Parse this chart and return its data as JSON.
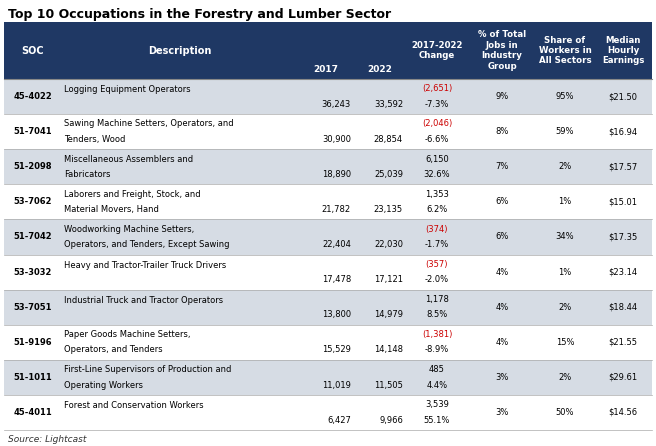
{
  "title": "Top 10 Occupations in the Forestry and Lumber Sector",
  "source": "Source: Lightcast",
  "header_bg": "#1F3864",
  "alt_row_bg": "#D6DCE4",
  "white_bg": "#FFFFFF",
  "neg_color": "#CC0000",
  "rows": [
    {
      "soc": "45-4022",
      "desc_line1": "Logging Equipment Operators",
      "desc_line2": "",
      "val2017": "36,243",
      "val2022": "33,592",
      "change_abs": "(2,651)",
      "change_pct": "-7.3%",
      "pct_jobs": "9%",
      "share": "95%",
      "median": "$21.50",
      "neg": true
    },
    {
      "soc": "51-7041",
      "desc_line1": "Sawing Machine Setters, Operators, and",
      "desc_line2": "Tenders, Wood",
      "val2017": "30,900",
      "val2022": "28,854",
      "change_abs": "(2,046)",
      "change_pct": "-6.6%",
      "pct_jobs": "8%",
      "share": "59%",
      "median": "$16.94",
      "neg": true
    },
    {
      "soc": "51-2098",
      "desc_line1": "Miscellaneous Assemblers and",
      "desc_line2": "Fabricators",
      "val2017": "18,890",
      "val2022": "25,039",
      "change_abs": "6,150",
      "change_pct": "32.6%",
      "pct_jobs": "7%",
      "share": "2%",
      "median": "$17.57",
      "neg": false
    },
    {
      "soc": "53-7062",
      "desc_line1": "Laborers and Freight, Stock, and",
      "desc_line2": "Material Movers, Hand",
      "val2017": "21,782",
      "val2022": "23,135",
      "change_abs": "1,353",
      "change_pct": "6.2%",
      "pct_jobs": "6%",
      "share": "1%",
      "median": "$15.01",
      "neg": false
    },
    {
      "soc": "51-7042",
      "desc_line1": "Woodworking Machine Setters,",
      "desc_line2": "Operators, and Tenders, Except Sawing",
      "val2017": "22,404",
      "val2022": "22,030",
      "change_abs": "(374)",
      "change_pct": "-1.7%",
      "pct_jobs": "6%",
      "share": "34%",
      "median": "$17.35",
      "neg": true
    },
    {
      "soc": "53-3032",
      "desc_line1": "Heavy and Tractor-Trailer Truck Drivers",
      "desc_line2": "",
      "val2017": "17,478",
      "val2022": "17,121",
      "change_abs": "(357)",
      "change_pct": "-2.0%",
      "pct_jobs": "4%",
      "share": "1%",
      "median": "$23.14",
      "neg": true
    },
    {
      "soc": "53-7051",
      "desc_line1": "Industrial Truck and Tractor Operators",
      "desc_line2": "",
      "val2017": "13,800",
      "val2022": "14,979",
      "change_abs": "1,178",
      "change_pct": "8.5%",
      "pct_jobs": "4%",
      "share": "2%",
      "median": "$18.44",
      "neg": false
    },
    {
      "soc": "51-9196",
      "desc_line1": "Paper Goods Machine Setters,",
      "desc_line2": "Operators, and Tenders",
      "val2017": "15,529",
      "val2022": "14,148",
      "change_abs": "(1,381)",
      "change_pct": "-8.9%",
      "pct_jobs": "4%",
      "share": "15%",
      "median": "$21.55",
      "neg": true
    },
    {
      "soc": "51-1011",
      "desc_line1": "First-Line Supervisors of Production and",
      "desc_line2": "Operating Workers",
      "val2017": "11,019",
      "val2022": "11,505",
      "change_abs": "485",
      "change_pct": "4.4%",
      "pct_jobs": "3%",
      "share": "2%",
      "median": "$29.61",
      "neg": false
    },
    {
      "soc": "45-4011",
      "desc_line1": "Forest and Conservation Workers",
      "desc_line2": "",
      "val2017": "6,427",
      "val2022": "9,966",
      "change_abs": "3,539",
      "change_pct": "55.1%",
      "pct_jobs": "3%",
      "share": "50%",
      "median": "$14.56",
      "neg": false
    }
  ]
}
